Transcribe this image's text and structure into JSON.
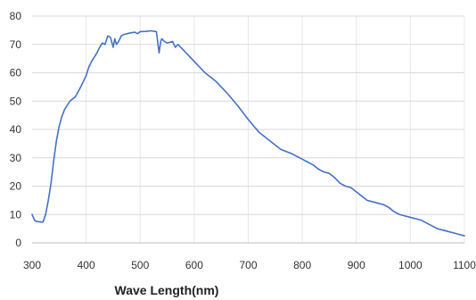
{
  "chart_data": {
    "type": "line",
    "title": "",
    "xlabel": "Wave Length(nm)",
    "ylabel": "",
    "xlim": [
      300,
      1100
    ],
    "ylim": [
      0,
      80
    ],
    "x_ticks": [
      300,
      400,
      500,
      600,
      700,
      800,
      900,
      1000,
      1100
    ],
    "y_ticks": [
      0,
      10,
      20,
      30,
      40,
      50,
      60,
      70,
      80
    ],
    "grid": "y-major",
    "legend": "none",
    "line_color": "#4472C4",
    "grid_color": "#d9d9d9",
    "series": [
      {
        "x": [
          300,
          305,
          310,
          320,
          325,
          330,
          335,
          340,
          345,
          350,
          355,
          360,
          370,
          380,
          390,
          400,
          405,
          410,
          420,
          425,
          430,
          435,
          440,
          445,
          450,
          453,
          456,
          460,
          465,
          470,
          480,
          490,
          495,
          500,
          510,
          520,
          530,
          535,
          538,
          540,
          545,
          550,
          560,
          565,
          570,
          580,
          590,
          600,
          610,
          620,
          640,
          660,
          680,
          700,
          720,
          740,
          760,
          780,
          800,
          810,
          820,
          830,
          840,
          850,
          860,
          870,
          880,
          890,
          900,
          910,
          920,
          930,
          940,
          950,
          960,
          970,
          980,
          990,
          1000,
          1010,
          1020,
          1030,
          1040,
          1050,
          1060,
          1070,
          1080,
          1090,
          1100
        ],
        "y": [
          10,
          7.8,
          7.5,
          7.3,
          10,
          15,
          21,
          29,
          36,
          41,
          44.5,
          47,
          50,
          51.5,
          55,
          59,
          62,
          64,
          67,
          69,
          70.5,
          70,
          73,
          72.5,
          69,
          72,
          70,
          71,
          73,
          73.5,
          74,
          74.3,
          73.8,
          74.5,
          74.6,
          74.8,
          74.5,
          67,
          71,
          72,
          71,
          70.5,
          71,
          69,
          70,
          68,
          66,
          64,
          62,
          60,
          57,
          53,
          48.5,
          43.5,
          39,
          36,
          33,
          31.5,
          29.5,
          28.5,
          27.5,
          26,
          25,
          24.5,
          23,
          21,
          20,
          19.5,
          18,
          16.5,
          15,
          14.5,
          14,
          13.5,
          12.5,
          11,
          10,
          9.5,
          9,
          8.5,
          8,
          7,
          6,
          5,
          4.5,
          4,
          3.5,
          3,
          2.5
        ]
      }
    ]
  }
}
